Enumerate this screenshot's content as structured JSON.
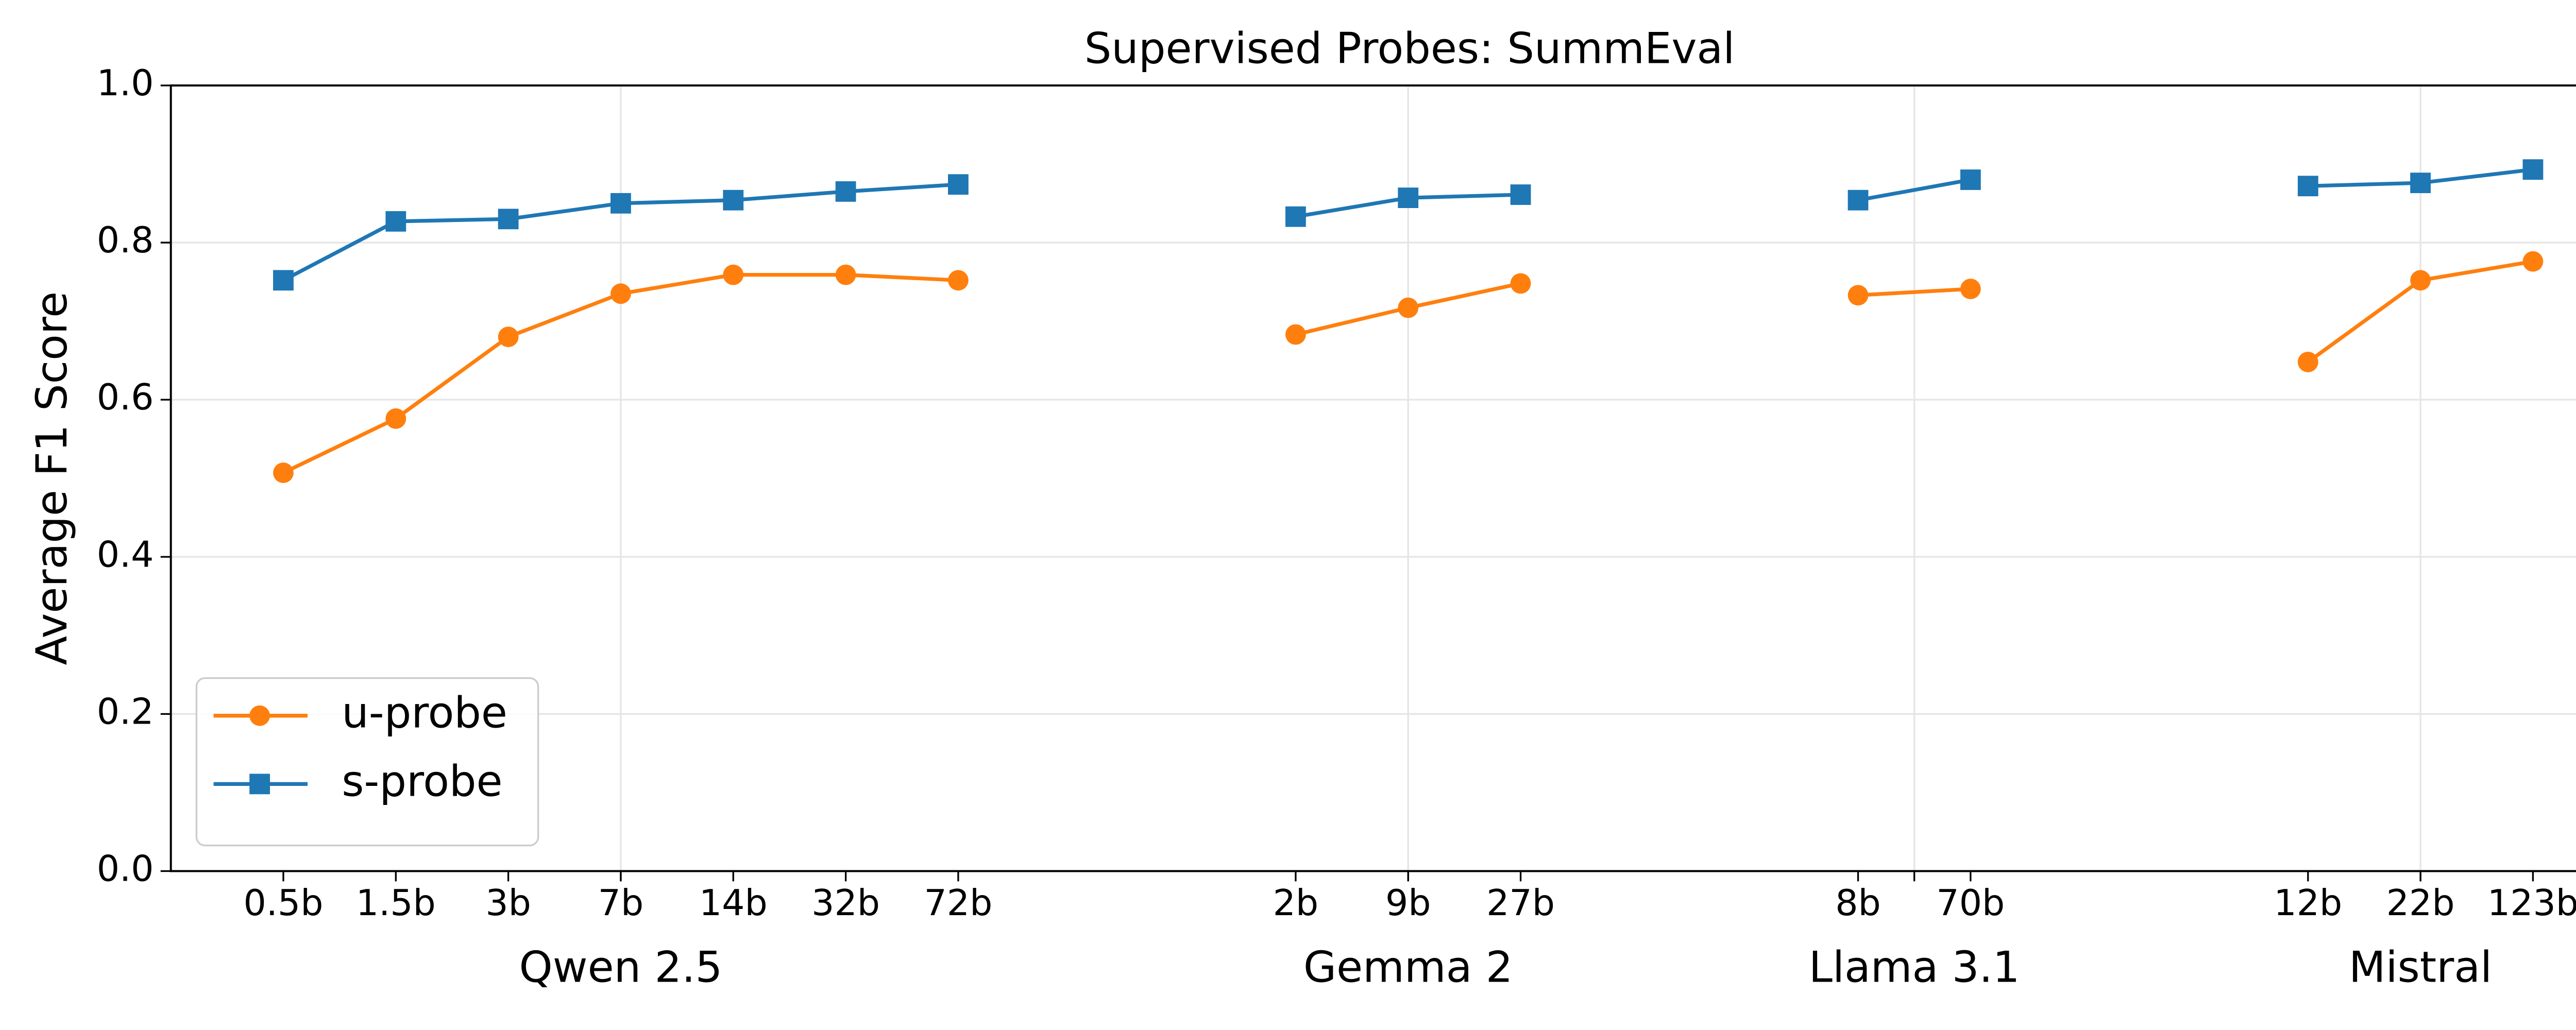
{
  "chart_data": {
    "type": "line",
    "title": "Supervised Probes: SummEval",
    "y_label": "Average F1 Score",
    "categories": [
      "0.5b",
      "1.5b",
      "3b",
      "7b",
      "14b",
      "32b",
      "72b",
      null,
      null,
      "2b",
      "9b",
      "27b",
      null,
      null,
      "8b",
      "70b",
      null,
      null,
      "12b",
      "22b",
      "123b"
    ],
    "groups": [
      "Qwen 2.5",
      "Gemma 2",
      "Llama 3.1",
      "Mistral"
    ],
    "series": [
      {
        "name": "u-probe",
        "color": "#ff7f0e",
        "marker": "circle",
        "values": [
          0.507,
          0.576,
          0.68,
          0.735,
          0.759,
          0.759,
          0.752,
          null,
          null,
          0.683,
          0.717,
          0.748,
          null,
          null,
          0.733,
          0.741,
          null,
          null,
          0.648,
          0.752,
          0.776
        ]
      },
      {
        "name": "s-probe",
        "color": "#1f77b4",
        "marker": "square",
        "values": [
          0.752,
          0.827,
          0.83,
          0.85,
          0.854,
          0.865,
          0.874,
          null,
          null,
          0.833,
          0.857,
          0.861,
          null,
          null,
          0.854,
          0.88,
          null,
          null,
          0.872,
          0.876,
          0.893
        ]
      }
    ],
    "ylim": [
      0,
      1
    ],
    "yticks": [
      {
        "value": 0,
        "label": "0.0"
      },
      {
        "value": 0.2,
        "label": "0.2"
      },
      {
        "value": 0.4,
        "label": "0.4"
      },
      {
        "value": 0.6,
        "label": "0.6"
      },
      {
        "value": 0.8,
        "label": "0.8"
      },
      {
        "value": 1,
        "label": "1.0"
      }
    ],
    "grid": true,
    "legend": "lower left"
  }
}
